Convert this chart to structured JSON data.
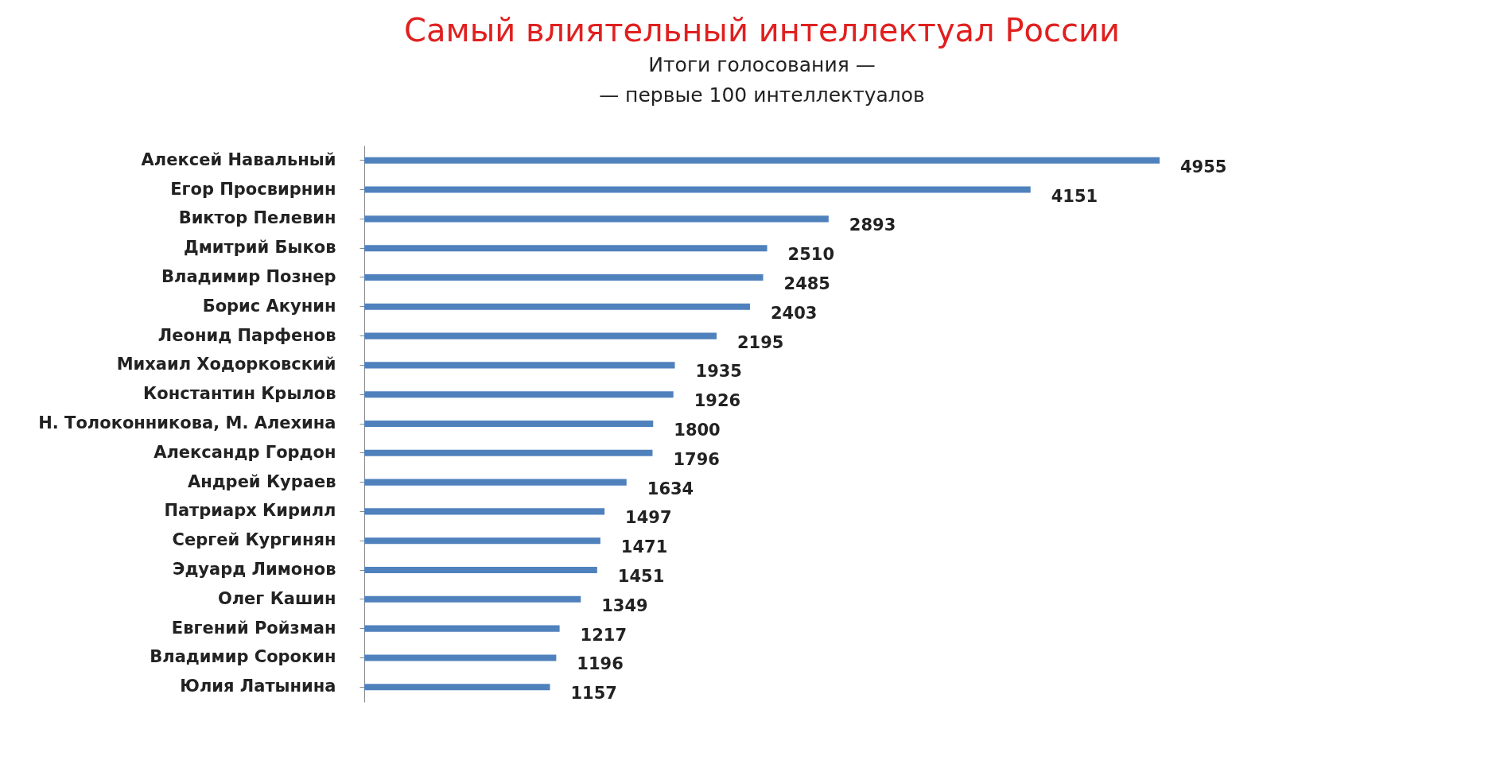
{
  "chart_data": {
    "type": "bar",
    "orientation": "horizontal",
    "title": "Самый влиятельный интеллектуал России",
    "subtitle": "Итоги голосования —\n— первые 100 интеллектуалов",
    "categories": [
      "Алексей Навальный",
      "Егор Просвирнин",
      "Виктор Пелевин",
      "Дмитрий Быков",
      "Владимир Познер",
      "Борис Акунин",
      "Леонид Парфенов",
      "Михаил Ходорковский",
      "Константин Крылов",
      "Н. Толоконникова,  М. Алехина",
      "Александр Гордон",
      "Андрей Кураев",
      "Патриарх Кирилл",
      "Сергей Кургинян",
      "Эдуард Лимонов",
      "Олег Кашин",
      "Евгений Ройзман",
      "Владимир Сорокин",
      "Юлия Латынина"
    ],
    "values": [
      4955,
      4151,
      2893,
      2510,
      2485,
      2403,
      2195,
      1935,
      1926,
      1800,
      1796,
      1634,
      1497,
      1471,
      1451,
      1349,
      1217,
      1196,
      1157
    ],
    "color": "#4f81bd",
    "data_labels": true
  }
}
